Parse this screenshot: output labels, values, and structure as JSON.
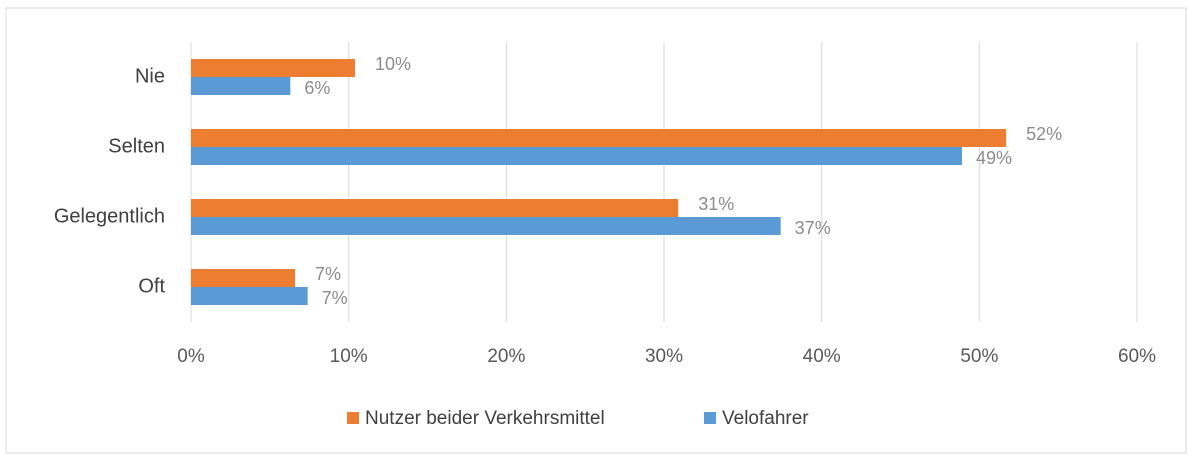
{
  "chart_data": {
    "type": "bar",
    "orientation": "horizontal",
    "categories": [
      "Nie",
      "Selten",
      "Gelegentlich",
      "Oft"
    ],
    "series": [
      {
        "name": "Nutzer beider Verkehrsmittel",
        "color": "#ed7d31",
        "values": [
          10.4,
          51.7,
          30.9,
          6.6
        ],
        "value_labels": [
          "10%",
          "52%",
          "31%",
          "7%"
        ]
      },
      {
        "name": "Velofahrer",
        "color": "#5b9bd5",
        "values": [
          6.3,
          48.9,
          37.4,
          7.4
        ],
        "value_labels": [
          "6%",
          "49%",
          "37%",
          "7%"
        ]
      }
    ],
    "xlim": [
      0,
      60
    ],
    "xticks": [
      {
        "value": 0,
        "label": "0%"
      },
      {
        "value": 10,
        "label": "10%"
      },
      {
        "value": 20,
        "label": "20%"
      },
      {
        "value": 30,
        "label": "30%"
      },
      {
        "value": 40,
        "label": "40%"
      },
      {
        "value": 50,
        "label": "50%"
      },
      {
        "value": 60,
        "label": "60%"
      }
    ],
    "grid": true,
    "legend": "bottom"
  }
}
